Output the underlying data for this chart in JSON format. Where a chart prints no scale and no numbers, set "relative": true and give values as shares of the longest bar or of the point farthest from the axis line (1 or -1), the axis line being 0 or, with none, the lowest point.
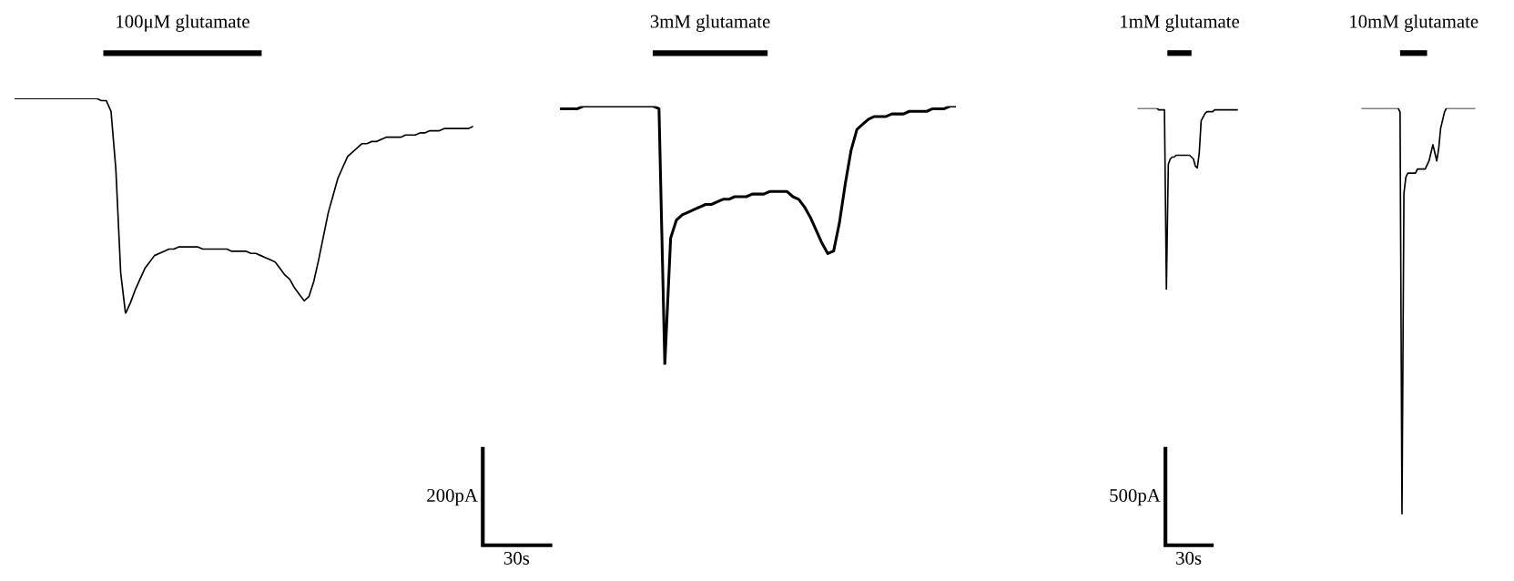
{
  "chart_data": [
    {
      "type": "line",
      "relative": true,
      "categories": [
        null,
        null,
        null,
        null,
        null,
        null,
        null,
        null,
        null,
        null,
        null,
        null,
        null,
        null,
        null,
        null,
        null,
        null,
        null,
        null,
        null,
        null,
        null,
        null,
        null,
        null,
        null,
        null,
        null,
        null,
        null,
        null,
        null,
        null,
        null,
        null,
        null,
        null,
        null,
        null,
        null,
        null,
        null,
        null,
        null,
        null,
        null,
        null,
        null,
        null,
        null,
        null,
        null,
        null,
        null,
        null,
        null,
        null,
        null,
        null,
        null,
        null,
        null,
        null,
        null,
        null,
        null,
        null,
        null,
        null,
        null,
        null,
        null,
        null,
        null,
        null,
        null,
        null,
        null,
        null,
        null,
        null,
        null,
        null,
        null,
        null,
        null,
        null,
        null,
        null,
        null,
        null,
        null,
        null,
        null,
        null
      ],
      "series": [
        {
          "color": "#000000",
          "values": [
            1,
            1,
            1,
            1,
            1,
            1,
            1,
            1,
            1,
            1,
            1,
            1,
            1,
            1,
            1,
            1,
            1,
            1,
            0.99,
            0.99,
            0.94,
            0.67,
            0.19,
            0,
            0.05,
            0.11,
            0.16,
            0.21,
            0.24,
            0.27,
            0.28,
            0.29,
            0.3,
            0.3,
            0.31,
            0.31,
            0.31,
            0.31,
            0.31,
            0.3,
            0.3,
            0.3,
            0.3,
            0.3,
            0.3,
            0.29,
            0.29,
            0.29,
            0.29,
            0.28,
            0.28,
            0.27,
            0.26,
            0.25,
            0.24,
            0.21,
            0.18,
            0.16,
            0.12,
            0.09,
            0.06,
            0.08,
            0.15,
            0.25,
            0.36,
            0.47,
            0.55,
            0.63,
            0.68,
            0.73,
            0.75,
            0.77,
            0.79,
            0.79,
            0.8,
            0.8,
            0.81,
            0.82,
            0.82,
            0.82,
            0.82,
            0.83,
            0.83,
            0.83,
            0.84,
            0.84,
            0.85,
            0.85,
            0.85,
            0.86,
            0.86,
            0.86,
            0.86,
            0.86,
            0.86,
            0.87
          ]
        }
      ],
      "annotations": [
        "100μM glutamate"
      ]
    },
    {
      "type": "line",
      "relative": true,
      "categories": [
        null,
        null,
        null,
        null,
        null,
        null,
        null,
        null,
        null,
        null,
        null,
        null,
        null,
        null,
        null,
        null,
        null,
        null,
        null,
        null,
        null,
        null,
        null,
        null,
        null,
        null,
        null,
        null,
        null,
        null,
        null,
        null,
        null,
        null,
        null,
        null,
        null,
        null,
        null,
        null,
        null,
        null,
        null,
        null,
        null,
        null,
        null,
        null,
        null,
        null,
        null,
        null,
        null,
        null,
        null,
        null,
        null,
        null,
        null,
        null,
        null,
        null,
        null,
        null,
        null,
        null,
        null,
        null,
        null
      ],
      "series": [
        {
          "color": "#000000",
          "values": [
            0.99,
            0.99,
            0.99,
            0.99,
            1,
            1,
            1,
            1,
            1,
            1,
            1,
            1,
            1,
            1,
            1,
            1,
            1,
            0.99,
            0,
            0.49,
            0.56,
            0.58,
            0.59,
            0.6,
            0.61,
            0.62,
            0.62,
            0.63,
            0.64,
            0.64,
            0.65,
            0.65,
            0.65,
            0.66,
            0.66,
            0.66,
            0.67,
            0.67,
            0.67,
            0.67,
            0.65,
            0.64,
            0.61,
            0.57,
            0.52,
            0.47,
            0.43,
            0.44,
            0.55,
            0.7,
            0.83,
            0.91,
            0.93,
            0.95,
            0.96,
            0.96,
            0.96,
            0.97,
            0.97,
            0.97,
            0.98,
            0.98,
            0.98,
            0.98,
            0.99,
            0.99,
            0.99,
            1,
            1
          ]
        }
      ],
      "annotations": [
        "3mM glutamate",
        "200pA",
        "30s"
      ]
    },
    {
      "type": "line",
      "relative": true,
      "categories": [
        null,
        null,
        null,
        null,
        null,
        null,
        null,
        null,
        null,
        null,
        null,
        null,
        null,
        null,
        null,
        null,
        null,
        null,
        null,
        null,
        null,
        null,
        null,
        null,
        null,
        null,
        null,
        null,
        null,
        null,
        null,
        null,
        null,
        null,
        null,
        null,
        null,
        null,
        null,
        null,
        null,
        null,
        null,
        null,
        null,
        null,
        null,
        null,
        null,
        null,
        null,
        null,
        null
      ],
      "series": [
        {
          "color": "#000000",
          "values": [
            1,
            1,
            1,
            1,
            1,
            1,
            1,
            1,
            1,
            1,
            1,
            0.99,
            0.99,
            0.99,
            0.99,
            0,
            0.69,
            0.72,
            0.73,
            0.73,
            0.74,
            0.74,
            0.74,
            0.74,
            0.74,
            0.74,
            0.74,
            0.74,
            0.73,
            0.72,
            0.68,
            0.67,
            0.75,
            0.93,
            0.95,
            0.97,
            0.98,
            0.98,
            0.98,
            0.98,
            0.99,
            0.99,
            0.99,
            0.99,
            0.99,
            0.99,
            0.99,
            0.99,
            0.99,
            0.99,
            0.99,
            0.99,
            0.99
          ]
        }
      ],
      "annotations": [
        "1mM glutamate",
        "500pA",
        "30s"
      ]
    },
    {
      "type": "line",
      "relative": true,
      "categories": [
        null,
        null,
        null,
        null,
        null,
        null,
        null,
        null,
        null,
        null,
        null,
        null,
        null,
        null,
        null,
        null,
        null,
        null,
        null,
        null,
        null,
        null,
        null,
        null,
        null,
        null,
        null,
        null,
        null,
        null,
        null,
        null,
        null,
        null,
        null,
        null,
        null,
        null,
        null,
        null,
        null,
        null,
        null,
        null,
        null,
        null,
        null,
        null,
        null,
        null,
        null,
        null,
        null,
        null,
        null,
        null,
        null,
        null,
        null,
        null
      ],
      "series": [
        {
          "color": "#000000",
          "values": [
            1,
            1,
            1,
            1,
            1,
            1,
            1,
            1,
            1,
            1,
            1,
            1,
            1,
            1,
            1,
            1,
            1,
            1,
            1,
            1,
            0.99,
            0,
            0.79,
            0.83,
            0.84,
            0.84,
            0.84,
            0.84,
            0.84,
            0.85,
            0.85,
            0.85,
            0.85,
            0.85,
            0.86,
            0.87,
            0.89,
            0.91,
            0.89,
            0.87,
            0.9,
            0.95,
            0.97,
            0.99,
            1,
            1,
            1,
            1,
            1,
            1,
            1,
            1,
            1,
            1,
            1,
            1,
            1,
            1,
            1,
            1
          ]
        }
      ],
      "annotations": [
        "10mM glutamate"
      ]
    }
  ]
}
